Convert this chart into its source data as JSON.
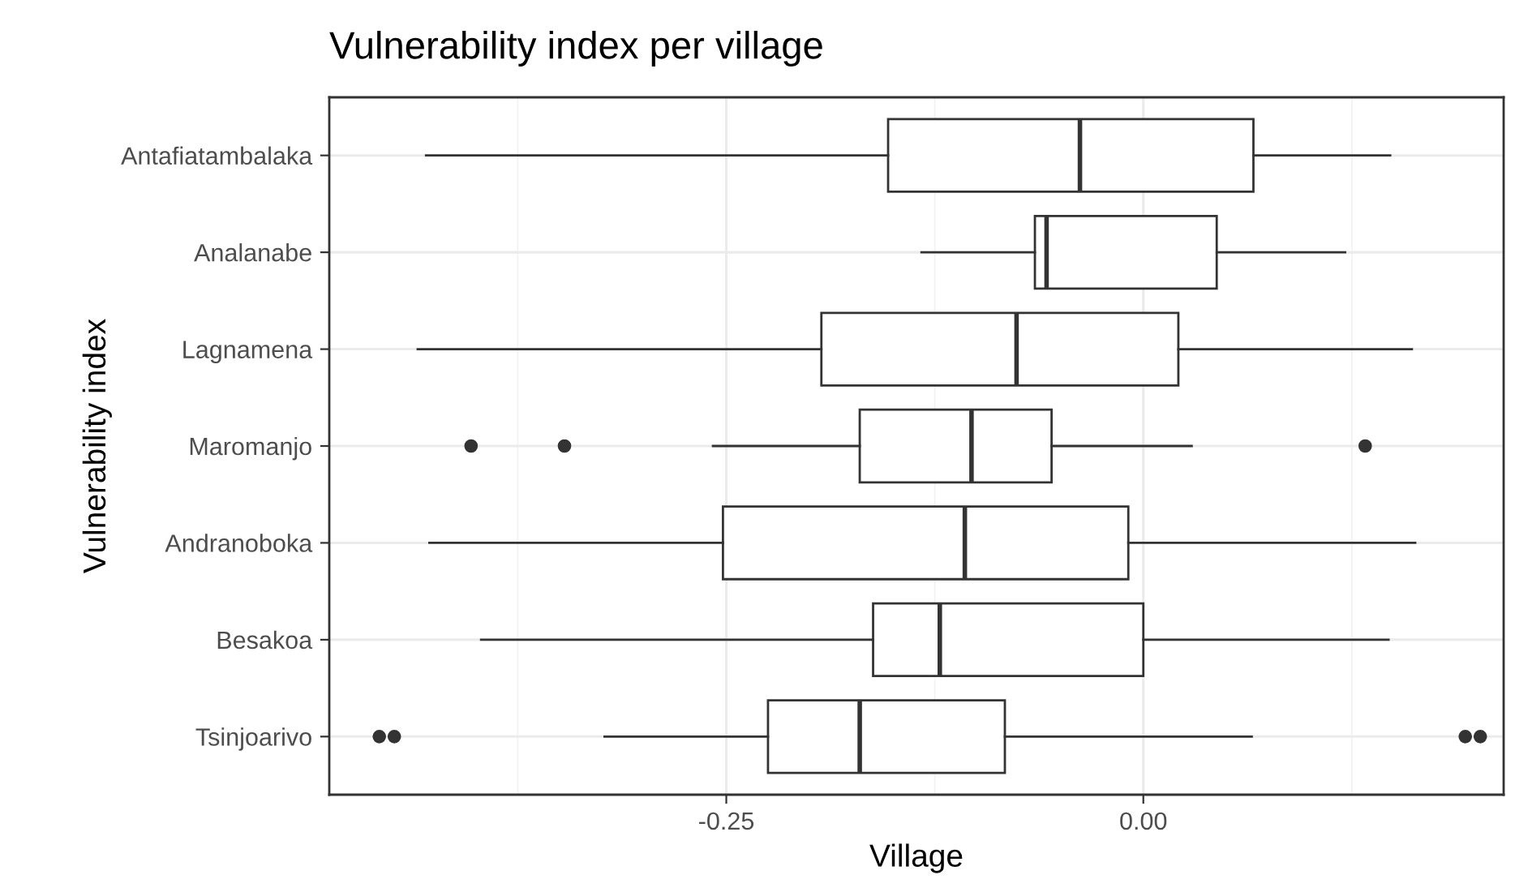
{
  "chart_data": {
    "type": "box",
    "orientation": "horizontal",
    "title": "Vulnerability index per village",
    "xlabel": "Village",
    "ylabel": "Vulnerability index",
    "categories": [
      "Antafiatambalaka",
      "Analanabe",
      "Lagnamena",
      "Maromanjo",
      "Andranoboka",
      "Besakoa",
      "Tsinjoarivo"
    ],
    "boxes": [
      {
        "low": -0.43,
        "q1": -0.153,
        "median": -0.038,
        "q3": 0.066,
        "high": 0.148
      },
      {
        "low": -0.133,
        "q1": -0.065,
        "median": -0.058,
        "q3": 0.044,
        "high": 0.121
      },
      {
        "low": -0.435,
        "q1": -0.193,
        "median": -0.076,
        "q3": 0.021,
        "high": 0.161
      },
      {
        "low": -0.258,
        "q1": -0.17,
        "median": -0.103,
        "q3": -0.055,
        "high": 0.029,
        "outliers": [
          -0.403,
          -0.347,
          0.133
        ]
      },
      {
        "low": -0.428,
        "q1": -0.252,
        "median": -0.107,
        "q3": -0.009,
        "high": 0.163
      },
      {
        "low": -0.397,
        "q1": -0.162,
        "median": -0.122,
        "q3": 0.0,
        "high": 0.147
      },
      {
        "low": -0.323,
        "q1": -0.225,
        "median": -0.17,
        "q3": -0.083,
        "high": 0.065,
        "outliers": [
          -0.458,
          -0.449,
          0.193,
          0.202
        ]
      }
    ],
    "color": "#333333",
    "xlim": [
      -0.488,
      0.216
    ],
    "xticks": [
      {
        "value": -0.375,
        "label": null
      },
      {
        "value": -0.25,
        "label": "-0.25"
      },
      {
        "value": -0.125,
        "label": null
      },
      {
        "value": 0.0,
        "label": "0.00"
      },
      {
        "value": 0.125,
        "label": null
      }
    ],
    "grid": true
  }
}
